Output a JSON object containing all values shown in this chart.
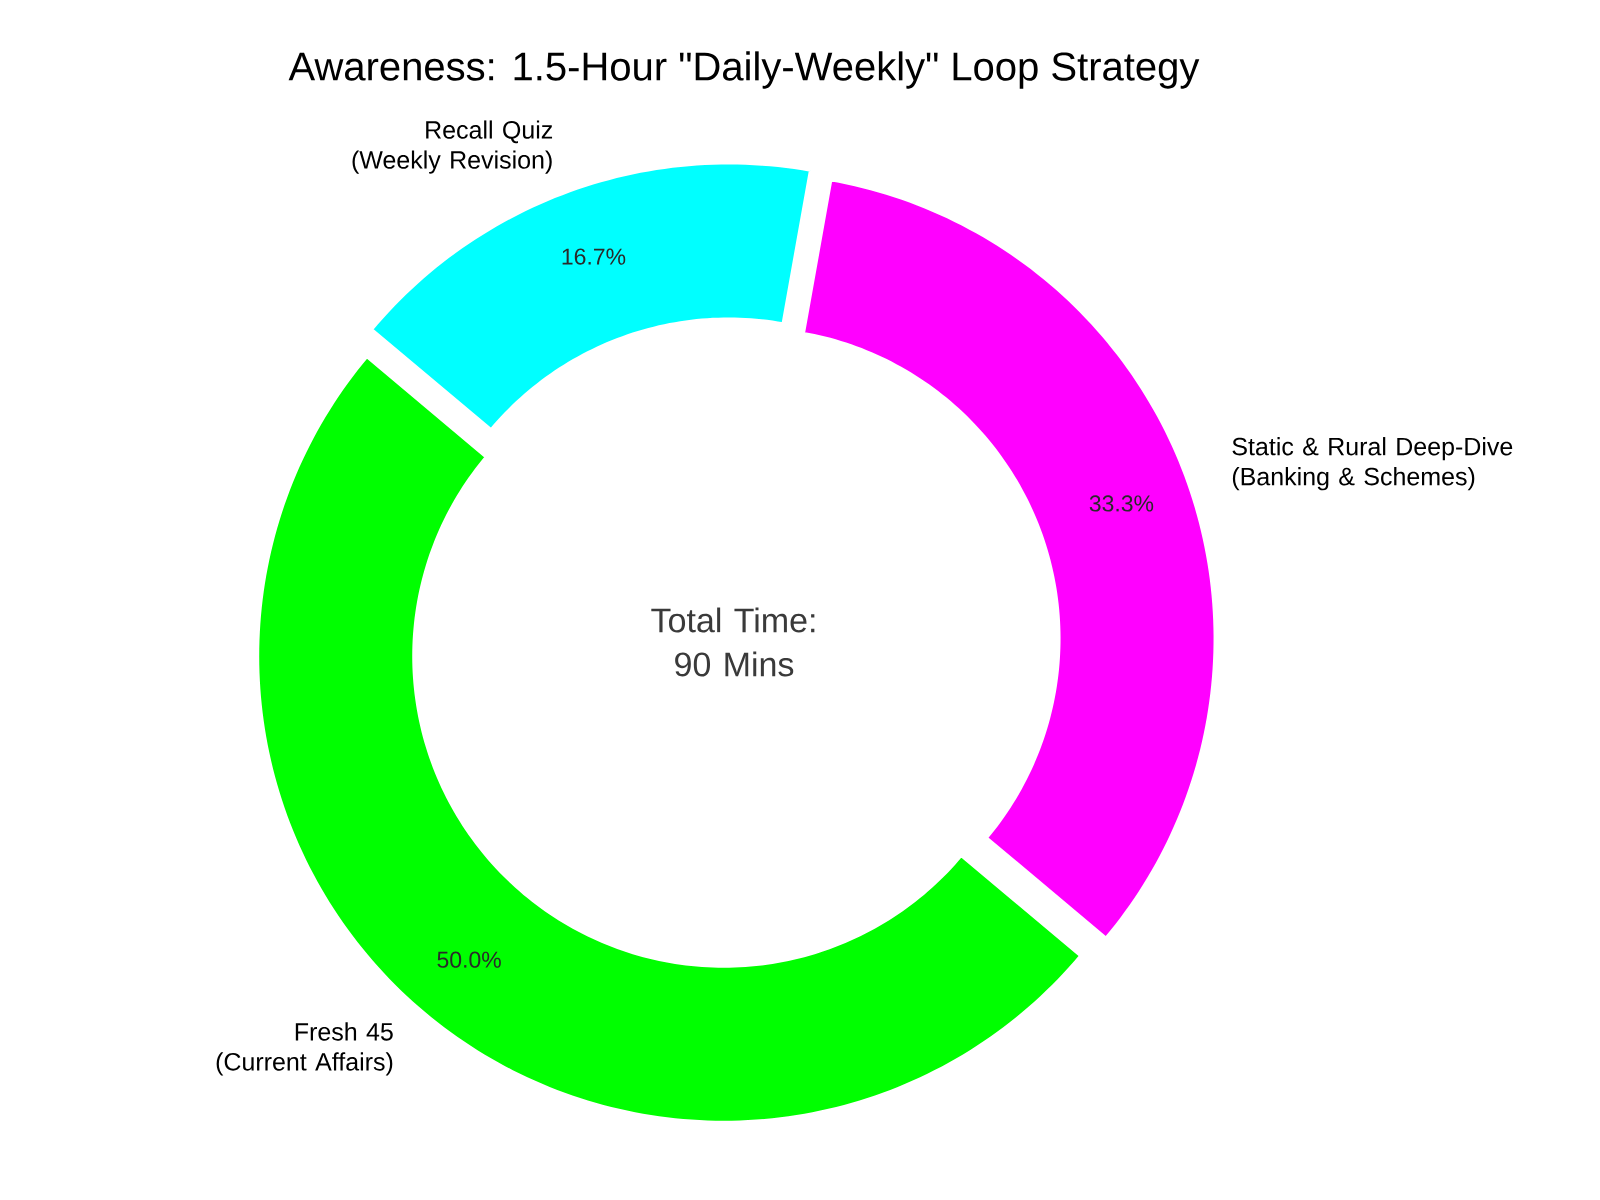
{
  "chart_data": {
    "type": "donut",
    "title": "Awareness: 1.5-Hour \"Daily-Weekly\" Loop Strategy",
    "categories": [
      "Fresh 45\n(Current Affairs)",
      "Static & Rural Deep-Dive\n(Banking & Schemes)",
      "Recall Quiz\n(Weekly Revision)"
    ],
    "values": [
      50.0,
      33.3,
      16.7
    ],
    "colors": [
      "#00ff00",
      "#ff00ff",
      "#00ffff"
    ],
    "value_labels": [
      "50.0%",
      "33.3%",
      "16.7%"
    ],
    "annotations": [
      "Total Time:\n90 Mins"
    ]
  }
}
